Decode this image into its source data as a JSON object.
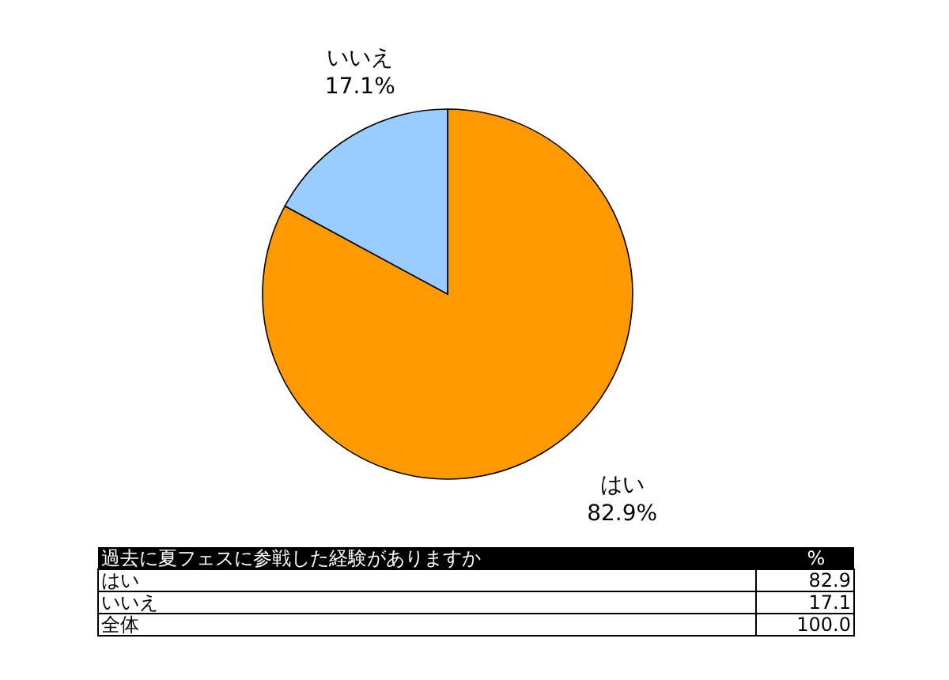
{
  "chart_data": {
    "type": "pie",
    "title": "過去に夏フェスに参戦した経験がありますか",
    "categories": [
      "はい",
      "いいえ"
    ],
    "values": [
      82.9,
      17.1
    ],
    "colors": [
      "#ff9900",
      "#99ccff"
    ],
    "value_labels": [
      "82.9%",
      "17.1%"
    ],
    "data_labels": true,
    "annotations": [
      "%",
      "82.9",
      "17.1",
      "全体",
      "100.0"
    ]
  }
}
